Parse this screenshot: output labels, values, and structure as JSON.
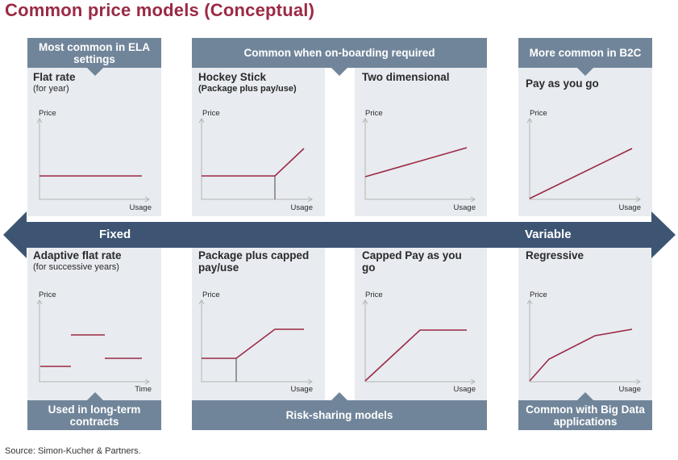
{
  "title": "Common price models (Conceptual)",
  "banners": {
    "top_left": "Most common in ELA settings",
    "top_mid": "Common when on-boarding required",
    "top_right": "More common in B2C",
    "bottom_left": "Used in long-term contracts",
    "bottom_mid": "Risk-sharing models",
    "bottom_right": "Common with Big Data applications"
  },
  "arrow": {
    "left_label": "Fixed",
    "right_label": "Variable"
  },
  "models": {
    "flat_rate": {
      "title": "Flat rate",
      "subtitle": "(for year)",
      "ylabel": "Price",
      "xlabel": "Usage"
    },
    "hockey_stick": {
      "title": "Hockey Stick",
      "subtitle": "(Package plus pay/use)",
      "ylabel": "Price",
      "xlabel": "Usage"
    },
    "two_dimensional": {
      "title": "Two dimensional",
      "ylabel": "Price",
      "xlabel": "Usage"
    },
    "pay_as_you_go": {
      "title": "Pay as you go",
      "ylabel": "Price",
      "xlabel": "Usage"
    },
    "adaptive_flat_rate": {
      "title": "Adaptive flat rate",
      "subtitle": "(for successive  years)",
      "ylabel": "Price",
      "xlabel": "Time"
    },
    "package_capped": {
      "title": "Package plus capped pay/use",
      "ylabel": "Price",
      "xlabel": "Usage"
    },
    "capped_payg": {
      "title": "Capped Pay as you go",
      "ylabel": "Price",
      "xlabel": "Usage"
    },
    "regressive": {
      "title": "Regressive",
      "ylabel": "Price",
      "xlabel": "Usage"
    }
  },
  "source": "Source: Simon-Kucher & Partners.",
  "colors": {
    "accent": "#9b2a44",
    "banner": "#71859a",
    "arrow": "#3d5573",
    "panel": "#e8ebf0"
  }
}
